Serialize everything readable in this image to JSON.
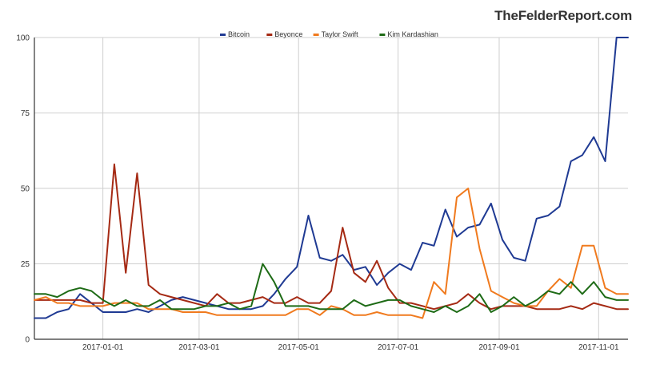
{
  "brand": "TheFelderReport.com",
  "colors": {
    "bitcoin": "#1f3a93",
    "beyonce": "#a52a14",
    "taylor_swift": "#f07a1e",
    "kim_kardashian": "#1e6b16",
    "grid": "#cfcfcf",
    "axis": "#333333"
  },
  "chart_data": {
    "type": "line",
    "title": "",
    "xlabel": "",
    "ylabel": "",
    "ylim": [
      0,
      100
    ],
    "yticks": [
      0,
      25,
      50,
      75,
      100
    ],
    "grid": true,
    "legend_position": "top-center",
    "x_dates": [
      "2016-11-20",
      "2016-11-27",
      "2016-12-04",
      "2016-12-11",
      "2016-12-18",
      "2016-12-25",
      "2017-01-01",
      "2017-01-08",
      "2017-01-15",
      "2017-01-22",
      "2017-01-29",
      "2017-02-05",
      "2017-02-12",
      "2017-02-19",
      "2017-02-26",
      "2017-03-05",
      "2017-03-12",
      "2017-03-19",
      "2017-03-26",
      "2017-04-02",
      "2017-04-09",
      "2017-04-16",
      "2017-04-23",
      "2017-04-30",
      "2017-05-07",
      "2017-05-14",
      "2017-05-21",
      "2017-05-28",
      "2017-06-04",
      "2017-06-11",
      "2017-06-18",
      "2017-06-25",
      "2017-07-02",
      "2017-07-09",
      "2017-07-16",
      "2017-07-23",
      "2017-07-30",
      "2017-08-06",
      "2017-08-13",
      "2017-08-20",
      "2017-08-27",
      "2017-09-03",
      "2017-09-10",
      "2017-09-17",
      "2017-09-24",
      "2017-10-01",
      "2017-10-08",
      "2017-10-15",
      "2017-10-22",
      "2017-10-29",
      "2017-11-05",
      "2017-11-12",
      "2017-11-19"
    ],
    "x_ticks": [
      {
        "date": "2017-01-01",
        "label": "2017-01-01"
      },
      {
        "date": "2017-03-01",
        "label": "2017-03-01"
      },
      {
        "date": "2017-05-01",
        "label": "2017-05-01"
      },
      {
        "date": "2017-07-01",
        "label": "2017-07-01"
      },
      {
        "date": "2017-09-01",
        "label": "2017-09-01"
      },
      {
        "date": "2017-11-01",
        "label": "2017-11-01"
      }
    ],
    "series": [
      {
        "name": "Bitcoin",
        "color_key": "bitcoin",
        "values": [
          7,
          7,
          9,
          10,
          15,
          12,
          9,
          9,
          9,
          10,
          9,
          11,
          13,
          14,
          13,
          12,
          11,
          10,
          10,
          10,
          11,
          15,
          20,
          24,
          41,
          27,
          26,
          28,
          23,
          24,
          18,
          22,
          25,
          23,
          32,
          31,
          43,
          34,
          37,
          38,
          45,
          33,
          27,
          26,
          40,
          41,
          44,
          59,
          61,
          67,
          59,
          100,
          100
        ]
      },
      {
        "name": "Beyonce",
        "color_key": "beyonce",
        "values": [
          13,
          13,
          13,
          13,
          13,
          12,
          12,
          58,
          22,
          55,
          18,
          15,
          14,
          13,
          12,
          11,
          15,
          12,
          12,
          13,
          14,
          12,
          12,
          14,
          12,
          12,
          16,
          37,
          22,
          19,
          26,
          17,
          12,
          12,
          11,
          10,
          11,
          12,
          15,
          12,
          10,
          11,
          11,
          11,
          10,
          10,
          10,
          11,
          10,
          12,
          11,
          10,
          10
        ]
      },
      {
        "name": "Taylor Swift",
        "color_key": "taylor_swift",
        "values": [
          13,
          14,
          12,
          12,
          11,
          11,
          11,
          12,
          12,
          12,
          10,
          10,
          10,
          9,
          9,
          9,
          8,
          8,
          8,
          8,
          8,
          8,
          8,
          10,
          10,
          8,
          11,
          10,
          8,
          8,
          9,
          8,
          8,
          8,
          7,
          19,
          15,
          47,
          50,
          30,
          16,
          14,
          12,
          11,
          11,
          16,
          20,
          17,
          31,
          31,
          17,
          15,
          15
        ]
      },
      {
        "name": "Kim Kardashian",
        "color_key": "kim_kardashian",
        "values": [
          15,
          15,
          14,
          16,
          17,
          16,
          13,
          11,
          13,
          11,
          11,
          13,
          10,
          10,
          10,
          11,
          11,
          12,
          10,
          11,
          25,
          19,
          11,
          11,
          11,
          10,
          10,
          10,
          13,
          11,
          12,
          13,
          13,
          11,
          10,
          9,
          11,
          9,
          11,
          15,
          9,
          11,
          14,
          11,
          13,
          16,
          15,
          19,
          15,
          19,
          14,
          13,
          13
        ]
      }
    ]
  }
}
